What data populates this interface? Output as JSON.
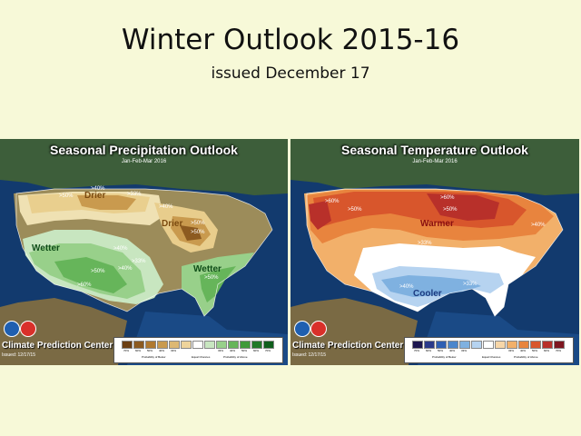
{
  "slide": {
    "title": "Winter Outlook 2015-16",
    "subtitle": "issued December  17"
  },
  "precip_map": {
    "title": "Seasonal Precipitation Outlook",
    "period": "Jan-Feb-Mar 2016",
    "regions": [
      "Drier",
      "Drier",
      "Wetter",
      "Wetter"
    ],
    "percents": [
      ">50%",
      ">40%",
      ">33%",
      ">40%",
      ">50%",
      ">50%",
      ">40%",
      ">33%",
      ">40%",
      ">50%",
      ">60%",
      ">50%"
    ],
    "footer": "Climate Prediction Center",
    "issued": "Issued: 12/17/15",
    "legend": {
      "swatch_colors": [
        "#6b3e12",
        "#8c5a20",
        "#b0792f",
        "#c99a4e",
        "#ddb873",
        "#eed49c",
        "#ffffff",
        "#c8e6c0",
        "#98d08a",
        "#66b55a",
        "#3f9a3a",
        "#217a28",
        "#0f5e1c"
      ],
      "percents": [
        "70%",
        "60%",
        "50%",
        "40%",
        "33%",
        "",
        "",
        "",
        "33%",
        "40%",
        "50%",
        "60%",
        "70%"
      ],
      "below_caption": "Probability of Below",
      "above_caption": "Probability of Above",
      "normal_caption": "Equal Chances"
    }
  },
  "temp_map": {
    "title": "Seasonal Temperature Outlook",
    "period": "Jan-Feb-Mar 2016",
    "regions": [
      "Warmer",
      "Cooler"
    ],
    "percents": [
      ">60%",
      ">50%",
      ">60%",
      ">50%",
      ">40%",
      ">33%",
      ">33%",
      ">40%",
      ">33%"
    ],
    "footer": "Climate Prediction Center",
    "issued": "Issued: 12/17/15",
    "legend": {
      "swatch_colors": [
        "#1c1650",
        "#2a3a8a",
        "#2e5fb3",
        "#4b86cc",
        "#7fb1e0",
        "#b6d3f0",
        "#ffffff",
        "#f7d6a8",
        "#f2b06a",
        "#e8843e",
        "#d8562c",
        "#b8302a",
        "#7e1620"
      ],
      "percents": [
        "70%",
        "60%",
        "50%",
        "40%",
        "33%",
        "",
        "",
        "",
        "33%",
        "40%",
        "50%",
        "60%",
        "70%"
      ],
      "below_caption": "Probability of Below",
      "above_caption": "Probability of Above",
      "normal_caption": "Equal Chances"
    }
  }
}
